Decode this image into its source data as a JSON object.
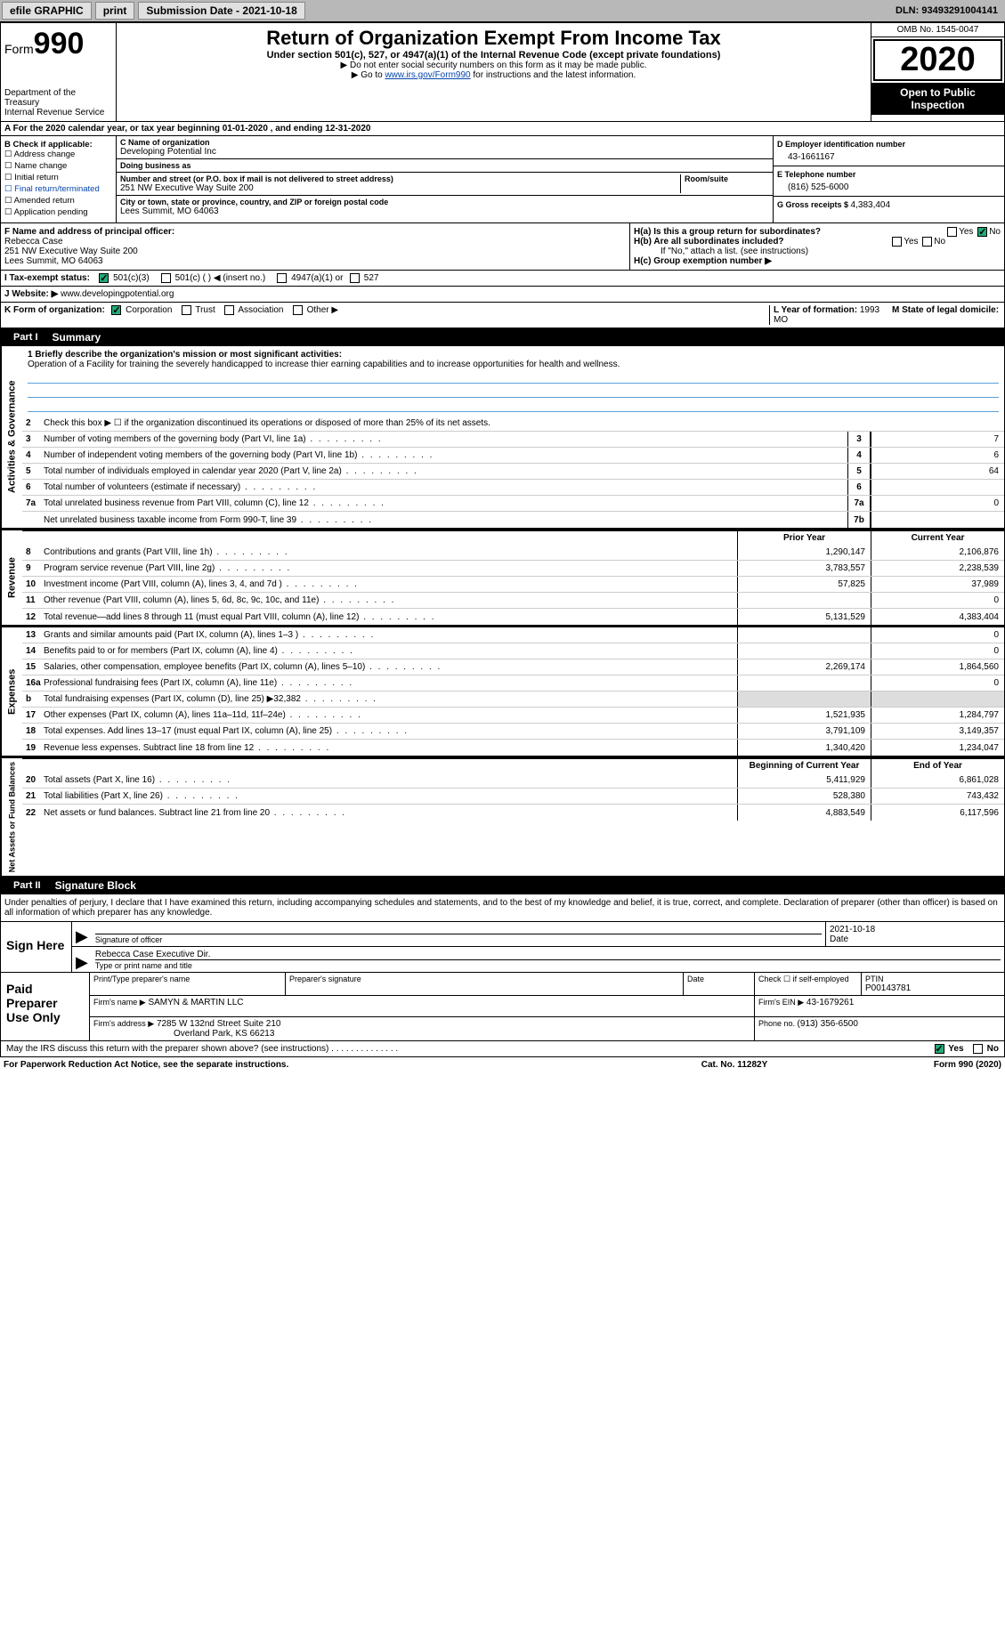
{
  "topbar": {
    "efile": "efile GRAPHIC",
    "print": "print",
    "submission_label": "Submission Date - ",
    "submission_date": "2021-10-18",
    "dln_label": "DLN: ",
    "dln": "93493291004141"
  },
  "header": {
    "form_prefix": "Form",
    "form_number": "990",
    "dept": "Department of the Treasury\nInternal Revenue Service",
    "title": "Return of Organization Exempt From Income Tax",
    "sub": "Under section 501(c), 527, or 4947(a)(1) of the Internal Revenue Code (except private foundations)",
    "note1": "▶ Do not enter social security numbers on this form as it may be made public.",
    "note2_pre": "▶ Go to ",
    "note2_link": "www.irs.gov/Form990",
    "note2_post": " for instructions and the latest information.",
    "omb": "OMB No. 1545-0047",
    "year": "2020",
    "open": "Open to Public Inspection"
  },
  "line_a": "A For the 2020 calendar year, or tax year beginning 01-01-2020    , and ending 12-31-2020",
  "box_b": {
    "title": "B Check if applicable:",
    "items": [
      "Address change",
      "Name change",
      "Initial return",
      "Final return/terminated",
      "Amended return",
      "Application pending"
    ]
  },
  "box_c": {
    "name_lbl": "C Name of organization",
    "name": "Developing Potential Inc",
    "dba_lbl": "Doing business as",
    "dba": "",
    "addr_lbl": "Number and street (or P.O. box if mail is not delivered to street address)",
    "room_lbl": "Room/suite",
    "addr": "251 NW Executive Way Suite 200",
    "city_lbl": "City or town, state or province, country, and ZIP or foreign postal code",
    "city": "Lees Summit, MO  64063"
  },
  "box_d": {
    "lbl": "D Employer identification number",
    "val": "43-1661167"
  },
  "box_e": {
    "lbl": "E Telephone number",
    "val": "(816) 525-6000"
  },
  "box_g": {
    "lbl": "G Gross receipts $ ",
    "val": "4,383,404"
  },
  "box_f": {
    "lbl": "F  Name and address of principal officer:",
    "name": "Rebecca Case",
    "addr1": "251 NW Executive Way Suite 200",
    "addr2": "Lees Summit, MO  64063"
  },
  "box_h": {
    "a_lbl": "H(a)  Is this a group return for subordinates?",
    "a_yes": "Yes",
    "a_no": "No",
    "b_lbl": "H(b)  Are all subordinates included?",
    "b_yes": "Yes",
    "b_no": "No",
    "b_note": "If \"No,\" attach a list. (see instructions)",
    "c_lbl": "H(c)  Group exemption number ▶"
  },
  "row_i": {
    "lbl": "I  Tax-exempt status:",
    "opts": [
      "501(c)(3)",
      "501(c) (  ) ◀ (insert no.)",
      "4947(a)(1) or",
      "527"
    ]
  },
  "row_j": {
    "lbl": "J  Website: ▶",
    "val": "  www.developingpotential.org"
  },
  "row_k": {
    "lbl": "K Form of organization:",
    "opts": [
      "Corporation",
      "Trust",
      "Association",
      "Other ▶"
    ],
    "l_lbl": "L Year of formation: ",
    "l_val": "1993",
    "m_lbl": "M State of legal domicile: ",
    "m_val": "MO"
  },
  "part1": {
    "tab": "Part I",
    "title": "Summary"
  },
  "mission": {
    "q": "1  Briefly describe the organization's mission or most significant activities:",
    "text": "Operation of a Facility for training the severely handicapped to increase thier earning capabilities and to increase opportunities for health and wellness."
  },
  "gov": {
    "label": "Activities & Governance",
    "line2": "Check this box ▶ ☐  if the organization discontinued its operations or disposed of more than 25% of its net assets.",
    "rows": [
      {
        "n": "3",
        "d": "Number of voting members of the governing body (Part VI, line 1a)",
        "box": "3",
        "v": "7"
      },
      {
        "n": "4",
        "d": "Number of independent voting members of the governing body (Part VI, line 1b)",
        "box": "4",
        "v": "6"
      },
      {
        "n": "5",
        "d": "Total number of individuals employed in calendar year 2020 (Part V, line 2a)",
        "box": "5",
        "v": "64"
      },
      {
        "n": "6",
        "d": "Total number of volunteers (estimate if necessary)",
        "box": "6",
        "v": ""
      },
      {
        "n": "7a",
        "d": "Total unrelated business revenue from Part VIII, column (C), line 12",
        "box": "7a",
        "v": "0"
      },
      {
        "n": "",
        "d": "Net unrelated business taxable income from Form 990-T, line 39",
        "box": "7b",
        "v": ""
      }
    ]
  },
  "col_hdr": {
    "prior": "Prior Year",
    "current": "Current Year",
    "begin": "Beginning of Current Year",
    "end": "End of Year"
  },
  "revenue": {
    "label": "Revenue",
    "rows": [
      {
        "n": "8",
        "d": "Contributions and grants (Part VIII, line 1h)",
        "p": "1,290,147",
        "c": "2,106,876"
      },
      {
        "n": "9",
        "d": "Program service revenue (Part VIII, line 2g)",
        "p": "3,783,557",
        "c": "2,238,539"
      },
      {
        "n": "10",
        "d": "Investment income (Part VIII, column (A), lines 3, 4, and 7d )",
        "p": "57,825",
        "c": "37,989"
      },
      {
        "n": "11",
        "d": "Other revenue (Part VIII, column (A), lines 5, 6d, 8c, 9c, 10c, and 11e)",
        "p": "",
        "c": "0"
      },
      {
        "n": "12",
        "d": "Total revenue—add lines 8 through 11 (must equal Part VIII, column (A), line 12)",
        "p": "5,131,529",
        "c": "4,383,404"
      }
    ]
  },
  "expenses": {
    "label": "Expenses",
    "rows": [
      {
        "n": "13",
        "d": "Grants and similar amounts paid (Part IX, column (A), lines 1–3 )",
        "p": "",
        "c": "0"
      },
      {
        "n": "14",
        "d": "Benefits paid to or for members (Part IX, column (A), line 4)",
        "p": "",
        "c": "0"
      },
      {
        "n": "15",
        "d": "Salaries, other compensation, employee benefits (Part IX, column (A), lines 5–10)",
        "p": "2,269,174",
        "c": "1,864,560"
      },
      {
        "n": "16a",
        "d": "Professional fundraising fees (Part IX, column (A), line 11e)",
        "p": "",
        "c": "0"
      },
      {
        "n": "b",
        "d": "Total fundraising expenses (Part IX, column (D), line 25) ▶32,382",
        "p": "shade",
        "c": "shade"
      },
      {
        "n": "17",
        "d": "Other expenses (Part IX, column (A), lines 11a–11d, 11f–24e)",
        "p": "1,521,935",
        "c": "1,284,797"
      },
      {
        "n": "18",
        "d": "Total expenses. Add lines 13–17 (must equal Part IX, column (A), line 25)",
        "p": "3,791,109",
        "c": "3,149,357"
      },
      {
        "n": "19",
        "d": "Revenue less expenses. Subtract line 18 from line 12",
        "p": "1,340,420",
        "c": "1,234,047"
      }
    ]
  },
  "netassets": {
    "label": "Net Assets or Fund Balances",
    "rows": [
      {
        "n": "20",
        "d": "Total assets (Part X, line 16)",
        "p": "5,411,929",
        "c": "6,861,028"
      },
      {
        "n": "21",
        "d": "Total liabilities (Part X, line 26)",
        "p": "528,380",
        "c": "743,432"
      },
      {
        "n": "22",
        "d": "Net assets or fund balances. Subtract line 21 from line 20",
        "p": "4,883,549",
        "c": "6,117,596"
      }
    ]
  },
  "part2": {
    "tab": "Part II",
    "title": "Signature Block"
  },
  "sig": {
    "intro": "Under penalties of perjury, I declare that I have examined this return, including accompanying schedules and statements, and to the best of my knowledge and belief, it is true, correct, and complete. Declaration of preparer (other than officer) is based on all information of which preparer has any knowledge.",
    "sign_here": "Sign Here",
    "sig_officer": "Signature of officer",
    "date_lbl": "Date",
    "date": "2021-10-18",
    "name": "Rebecca Case  Executive Dir.",
    "name_lbl": "Type or print name and title"
  },
  "prep": {
    "title": "Paid Preparer Use Only",
    "r1": {
      "c1": "Print/Type preparer's name",
      "c2": "Preparer's signature",
      "c3": "Date",
      "c4_lbl": "Check ☐ if self-employed",
      "c5_lbl": "PTIN",
      "c5": "P00143781"
    },
    "r2": {
      "lbl": "Firm's name    ▶",
      "val": "SAMYN & MARTIN LLC",
      "ein_lbl": "Firm's EIN ▶",
      "ein": "43-1679261"
    },
    "r3": {
      "lbl": "Firm's address ▶",
      "val1": "7285 W 132nd Street Suite 210",
      "val2": "Overland Park, KS  66213",
      "ph_lbl": "Phone no. ",
      "ph": "(913) 356-6500"
    }
  },
  "discuss": {
    "q": "May the IRS discuss this return with the preparer shown above? (see instructions)",
    "yes": "Yes",
    "no": "No"
  },
  "footer": {
    "l": "For Paperwork Reduction Act Notice, see the separate instructions.",
    "m": "Cat. No. 11282Y",
    "r": "Form 990 (2020)"
  },
  "colors": {
    "link": "#0645ad",
    "rule_blue": "#5aa0dd",
    "shade": "#dddddd",
    "topbar": "#b8b8b8",
    "check_green": "#22aa77"
  }
}
